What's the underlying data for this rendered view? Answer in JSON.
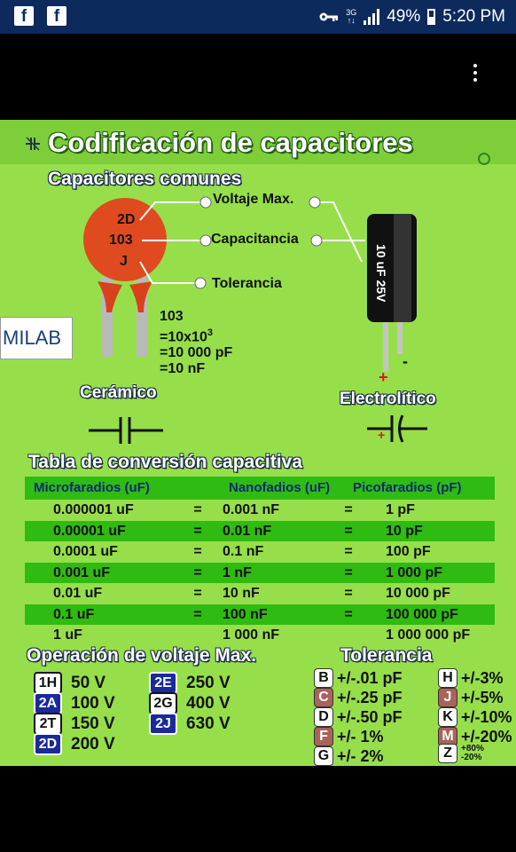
{
  "status_bar": {
    "battery": "49%",
    "time": "5:20 PM",
    "network": "3G"
  },
  "infographic": {
    "title": "Codificación de capacitores",
    "subtitle_common": "Capacitores comunes",
    "ceramic_code": [
      "2D",
      "103",
      "J"
    ],
    "labels": {
      "voltage": "Voltaje Max.",
      "capacitance": "Capacitancia",
      "tolerance": "Tolerancia"
    },
    "calculation": [
      "103",
      "=10x10",
      "3",
      "=10 000 pF",
      "=10 nF"
    ],
    "logo": "MILAB",
    "electrolytic_text": "10 uF 25V",
    "plus": "+",
    "minus": "-",
    "ceramic_label": "Cerámico",
    "electrolytic_label": "Electrolítico",
    "table_title": "Tabla de conversión capacitiva",
    "table_headers": [
      "Microfaradios (uF)",
      "Nanofadios (uF)",
      "Picofaradios (pF)"
    ],
    "table_rows": [
      [
        "0.000001 uF",
        "0.001 nF",
        "1 pF"
      ],
      [
        "0.00001 uF",
        "0.01 nF",
        "10 pF"
      ],
      [
        "0.0001 uF",
        "0.1 nF",
        "100 pF"
      ],
      [
        "0.001 uF",
        "1 nF",
        "1 000 pF"
      ],
      [
        "0.01 uF",
        "10 nF",
        "10 000 pF"
      ],
      [
        "0.1 uF",
        "100 nF",
        "100 000 pF"
      ],
      [
        "1 uF",
        "1 000 nF",
        "1 000 000 pF"
      ]
    ],
    "equals": "=",
    "voltage_title": "Operación de voltaje Max.",
    "voltage_codes": [
      {
        "code": "1H",
        "value": "50 V"
      },
      {
        "code": "2A",
        "value": "100 V"
      },
      {
        "code": "2T",
        "value": "150 V"
      },
      {
        "code": "2D",
        "value": "200 V"
      },
      {
        "code": "2E",
        "value": "250 V"
      },
      {
        "code": "2G",
        "value": "400 V"
      },
      {
        "code": "2J",
        "value": "630 V"
      }
    ],
    "tolerance_title": "Tolerancia",
    "tolerance_codes": [
      {
        "code": "B",
        "value": "+/-.01 pF"
      },
      {
        "code": "C",
        "value": "+/-.25 pF"
      },
      {
        "code": "D",
        "value": "+/-.50 pF"
      },
      {
        "code": "F",
        "value": "+/- 1%"
      },
      {
        "code": "G",
        "value": "+/- 2%"
      },
      {
        "code": "H",
        "value": "+/-3%"
      },
      {
        "code": "J",
        "value": "+/-5%"
      },
      {
        "code": "K",
        "value": "+/-10%"
      },
      {
        "code": "M",
        "value": "+/-20%"
      },
      {
        "code": "Z",
        "value_top": "+80%",
        "value_bottom": "-20%"
      }
    ]
  }
}
